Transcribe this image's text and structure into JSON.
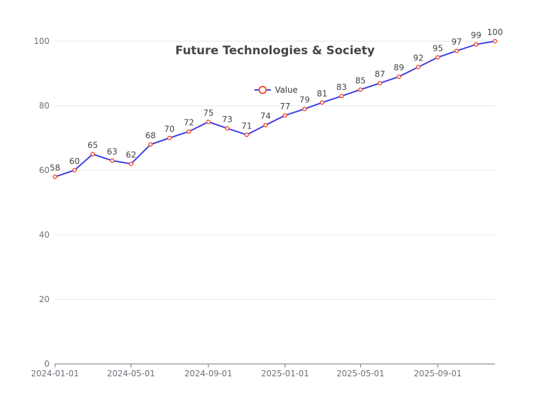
{
  "chart_data": {
    "type": "line",
    "title": "Future Technologies & Society",
    "xlabel": "",
    "ylabel": "",
    "ylim": [
      0,
      100
    ],
    "yticks": [
      0,
      20,
      40,
      60,
      80,
      100
    ],
    "x": [
      "2024-01-01",
      "2024-02-01",
      "2024-03-01",
      "2024-04-01",
      "2024-05-01",
      "2024-06-01",
      "2024-07-01",
      "2024-08-01",
      "2024-09-01",
      "2024-10-01",
      "2024-11-01",
      "2024-12-01",
      "2025-01-01",
      "2025-02-01",
      "2025-03-01",
      "2025-04-01",
      "2025-05-01",
      "2025-06-01",
      "2025-07-01",
      "2025-08-01",
      "2025-09-01",
      "2025-10-01",
      "2025-11-01",
      "2025-12-01"
    ],
    "xtick_labels": [
      "2024-01-01",
      "2024-05-01",
      "2024-09-01",
      "2025-01-01",
      "2025-05-01",
      "2025-09-01"
    ],
    "series": [
      {
        "name": "Value",
        "values": [
          58,
          60,
          65,
          63,
          62,
          68,
          70,
          72,
          75,
          73,
          71,
          74,
          77,
          79,
          81,
          83,
          85,
          87,
          89,
          92,
          95,
          97,
          99,
          100
        ]
      }
    ],
    "grid": true,
    "legend": "top-center",
    "colors": {
      "line": "#3d3be8",
      "marker": "#f0522e",
      "axis": "#6e7079",
      "grid": "#e6e6e6"
    }
  }
}
